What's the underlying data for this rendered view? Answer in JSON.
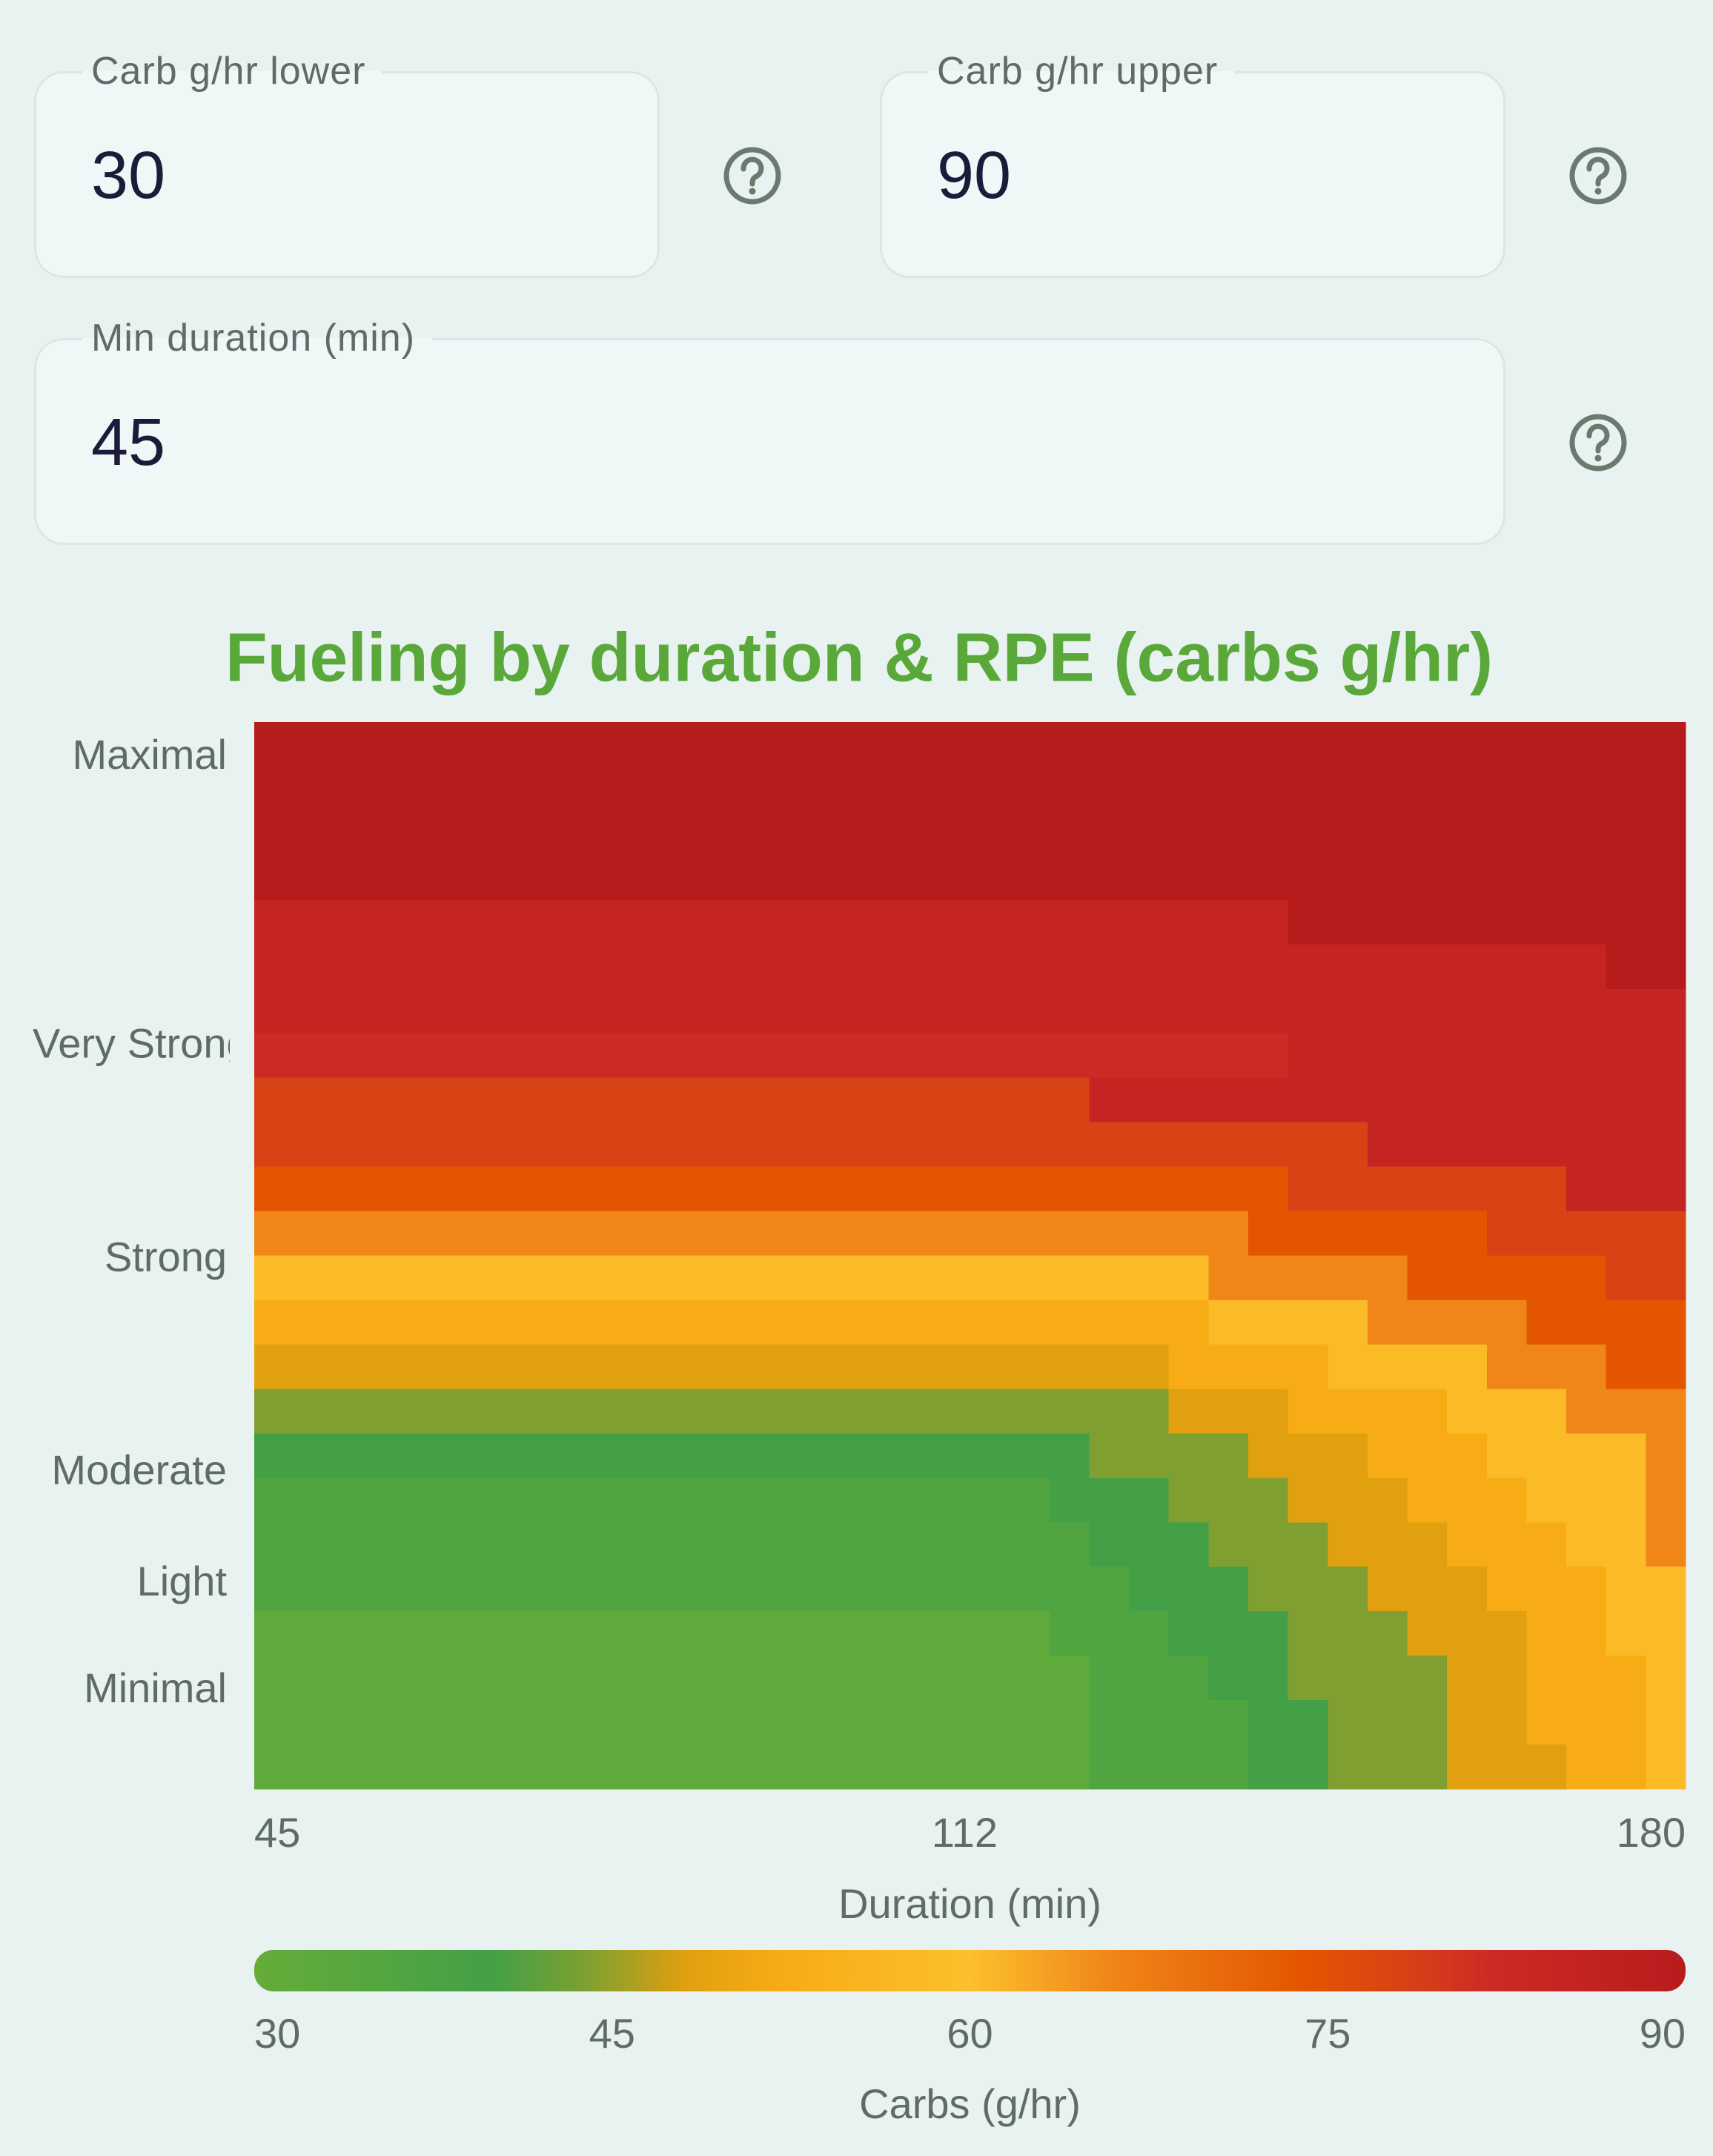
{
  "form": {
    "fields": [
      {
        "label": "Carb g/hr lower",
        "value": "30"
      },
      {
        "label": "Carb g/hr upper",
        "value": "90"
      },
      {
        "label": "Min duration (min)",
        "value": "45"
      }
    ]
  },
  "chart_data": {
    "type": "heatmap",
    "title": "Fueling by duration & RPE (carbs g/hr)",
    "xlabel": "Duration (min)",
    "xlim": [
      45,
      180
    ],
    "xticks": [
      45,
      112,
      180
    ],
    "ylim": [
      0,
      24
    ],
    "yticks": [
      {
        "value": 23.2,
        "label": "Maximal"
      },
      {
        "value": 16.7,
        "label": "Very Strong"
      },
      {
        "value": 11.9,
        "label": "Strong"
      },
      {
        "value": 7.1,
        "label": "Moderate"
      },
      {
        "value": 4.6,
        "label": "Light"
      },
      {
        "value": 2.2,
        "label": "Minimal"
      }
    ],
    "z": [
      [
        90,
        90,
        90,
        90,
        90,
        90,
        90,
        90,
        90,
        90,
        90,
        90,
        90,
        90,
        90,
        90,
        90,
        90,
        90,
        90,
        90,
        90,
        90,
        90,
        90,
        90,
        90,
        90,
        90,
        90,
        90,
        90,
        90,
        90,
        90,
        90
      ],
      [
        90,
        90,
        90,
        90,
        90,
        90,
        90,
        90,
        90,
        90,
        90,
        90,
        90,
        90,
        90,
        90,
        90,
        90,
        90,
        90,
        90,
        90,
        90,
        90,
        90,
        90,
        90,
        90,
        90,
        90,
        90,
        90,
        90,
        90,
        90,
        90
      ],
      [
        90,
        90,
        90,
        90,
        90,
        90,
        90,
        90,
        90,
        90,
        90,
        90,
        90,
        90,
        90,
        90,
        90,
        90,
        90,
        90,
        90,
        90,
        90,
        90,
        90,
        90,
        90,
        90,
        90,
        90,
        90,
        90,
        90,
        90,
        90,
        90
      ],
      [
        90,
        90,
        90,
        90,
        90,
        90,
        90,
        90,
        90,
        90,
        90,
        90,
        90,
        90,
        90,
        90,
        90,
        90,
        90,
        90,
        90,
        90,
        90,
        90,
        90,
        90,
        90,
        90,
        90,
        90,
        90,
        90,
        90,
        90,
        90,
        90
      ],
      [
        85,
        85,
        85,
        85,
        85,
        85,
        85,
        85,
        85,
        85,
        85,
        85,
        85,
        85,
        85,
        85,
        85,
        85,
        85,
        85,
        85,
        85,
        85,
        85,
        85,
        85,
        90,
        90,
        90,
        90,
        90,
        90,
        90,
        90,
        90,
        90
      ],
      [
        85,
        85,
        85,
        85,
        85,
        85,
        85,
        85,
        85,
        85,
        85,
        85,
        85,
        85,
        85,
        85,
        85,
        85,
        85,
        85,
        85,
        85,
        85,
        85,
        85,
        85,
        85,
        85,
        85,
        85,
        85,
        85,
        85,
        85,
        90,
        90
      ],
      [
        85,
        85,
        85,
        85,
        85,
        85,
        85,
        85,
        85,
        85,
        85,
        85,
        85,
        85,
        85,
        85,
        85,
        85,
        85,
        85,
        85,
        85,
        85,
        85,
        85,
        85,
        85,
        85,
        85,
        85,
        85,
        85,
        85,
        85,
        85,
        85
      ],
      [
        82,
        82,
        82,
        82,
        82,
        82,
        82,
        82,
        82,
        82,
        82,
        82,
        82,
        82,
        82,
        82,
        82,
        82,
        82,
        82,
        82,
        82,
        82,
        82,
        82,
        82,
        85,
        85,
        85,
        85,
        85,
        85,
        85,
        85,
        85,
        85
      ],
      [
        78,
        78,
        78,
        78,
        78,
        78,
        78,
        78,
        78,
        78,
        78,
        78,
        78,
        78,
        78,
        78,
        78,
        78,
        78,
        78,
        78,
        85,
        85,
        85,
        85,
        85,
        85,
        85,
        85,
        85,
        85,
        85,
        85,
        85,
        85,
        85
      ],
      [
        78,
        78,
        78,
        78,
        78,
        78,
        78,
        78,
        78,
        78,
        78,
        78,
        78,
        78,
        78,
        78,
        78,
        78,
        78,
        78,
        78,
        78,
        78,
        78,
        78,
        78,
        78,
        78,
        85,
        85,
        85,
        85,
        85,
        85,
        85,
        85
      ],
      [
        74,
        74,
        74,
        74,
        74,
        74,
        74,
        74,
        74,
        74,
        74,
        74,
        74,
        74,
        74,
        74,
        74,
        74,
        74,
        74,
        74,
        74,
        74,
        74,
        74,
        74,
        78,
        78,
        78,
        78,
        78,
        78,
        78,
        85,
        85,
        85
      ],
      [
        66,
        66,
        66,
        66,
        66,
        66,
        66,
        66,
        66,
        66,
        66,
        66,
        66,
        66,
        66,
        66,
        66,
        66,
        66,
        66,
        66,
        66,
        66,
        66,
        66,
        74,
        74,
        74,
        74,
        74,
        74,
        78,
        78,
        78,
        78,
        78
      ],
      [
        58,
        58,
        58,
        58,
        58,
        58,
        58,
        58,
        58,
        58,
        58,
        58,
        58,
        58,
        58,
        58,
        58,
        58,
        58,
        58,
        58,
        58,
        58,
        58,
        66,
        66,
        66,
        66,
        66,
        74,
        74,
        74,
        74,
        74,
        78,
        78
      ],
      [
        52,
        52,
        52,
        52,
        52,
        52,
        52,
        52,
        52,
        52,
        52,
        52,
        52,
        52,
        52,
        52,
        52,
        52,
        52,
        52,
        52,
        52,
        52,
        52,
        58,
        58,
        58,
        58,
        66,
        66,
        66,
        66,
        74,
        74,
        74,
        74
      ],
      [
        48,
        48,
        48,
        48,
        48,
        48,
        48,
        48,
        48,
        48,
        48,
        48,
        48,
        48,
        48,
        48,
        48,
        48,
        48,
        48,
        48,
        48,
        48,
        52,
        52,
        52,
        52,
        58,
        58,
        58,
        58,
        66,
        66,
        66,
        74,
        74
      ],
      [
        44,
        44,
        44,
        44,
        44,
        44,
        44,
        44,
        44,
        44,
        44,
        44,
        44,
        44,
        44,
        44,
        44,
        44,
        44,
        44,
        44,
        44,
        44,
        48,
        48,
        48,
        52,
        52,
        52,
        52,
        58,
        58,
        58,
        66,
        66,
        66
      ],
      [
        40,
        40,
        40,
        40,
        40,
        40,
        40,
        40,
        40,
        40,
        40,
        40,
        40,
        40,
        40,
        40,
        40,
        40,
        40,
        40,
        40,
        44,
        44,
        44,
        44,
        48,
        48,
        48,
        52,
        52,
        52,
        58,
        58,
        58,
        58,
        66
      ],
      [
        36,
        36,
        36,
        36,
        36,
        36,
        36,
        36,
        36,
        36,
        36,
        36,
        36,
        36,
        36,
        36,
        36,
        36,
        36,
        36,
        40,
        40,
        40,
        44,
        44,
        44,
        48,
        48,
        48,
        52,
        52,
        52,
        58,
        58,
        58,
        66
      ],
      [
        36,
        36,
        36,
        36,
        36,
        36,
        36,
        36,
        36,
        36,
        36,
        36,
        36,
        36,
        36,
        36,
        36,
        36,
        36,
        36,
        36,
        40,
        40,
        40,
        44,
        44,
        44,
        48,
        48,
        48,
        52,
        52,
        52,
        58,
        58,
        66
      ],
      [
        36,
        36,
        36,
        36,
        36,
        36,
        36,
        36,
        36,
        36,
        36,
        36,
        36,
        36,
        36,
        36,
        36,
        36,
        36,
        36,
        36,
        36,
        40,
        40,
        40,
        44,
        44,
        44,
        48,
        48,
        48,
        52,
        52,
        52,
        58,
        58
      ],
      [
        32,
        32,
        32,
        32,
        32,
        32,
        32,
        32,
        32,
        32,
        32,
        32,
        32,
        32,
        32,
        32,
        32,
        32,
        32,
        32,
        36,
        36,
        36,
        40,
        40,
        40,
        44,
        44,
        44,
        48,
        48,
        48,
        52,
        52,
        58,
        58
      ],
      [
        32,
        32,
        32,
        32,
        32,
        32,
        32,
        32,
        32,
        32,
        32,
        32,
        32,
        32,
        32,
        32,
        32,
        32,
        32,
        32,
        32,
        36,
        36,
        36,
        40,
        40,
        44,
        44,
        44,
        44,
        48,
        48,
        52,
        52,
        52,
        58
      ],
      [
        32,
        32,
        32,
        32,
        32,
        32,
        32,
        32,
        32,
        32,
        32,
        32,
        32,
        32,
        32,
        32,
        32,
        32,
        32,
        32,
        32,
        36,
        36,
        36,
        36,
        40,
        40,
        44,
        44,
        44,
        48,
        48,
        52,
        52,
        52,
        58
      ],
      [
        32,
        32,
        32,
        32,
        32,
        32,
        32,
        32,
        32,
        32,
        32,
        32,
        32,
        32,
        32,
        32,
        32,
        32,
        32,
        32,
        32,
        36,
        36,
        36,
        36,
        40,
        40,
        44,
        44,
        44,
        48,
        48,
        48,
        52,
        52,
        58
      ]
    ],
    "colorscale": [
      [
        30,
        "#66ac38"
      ],
      [
        40,
        "#43a047"
      ],
      [
        44,
        "#7fa030"
      ],
      [
        48,
        "#e0a010"
      ],
      [
        52,
        "#f7ab15"
      ],
      [
        60,
        "#fbc02d"
      ],
      [
        66,
        "#f08518"
      ],
      [
        74,
        "#e35500"
      ],
      [
        78,
        "#d84315"
      ],
      [
        82,
        "#cc2a25"
      ],
      [
        90,
        "#b71c1c"
      ]
    ],
    "clim": [
      30,
      90
    ],
    "colorbar_label": "Carbs (g/hr)",
    "colorbar_ticks": [
      30,
      45,
      60,
      75,
      90
    ]
  }
}
